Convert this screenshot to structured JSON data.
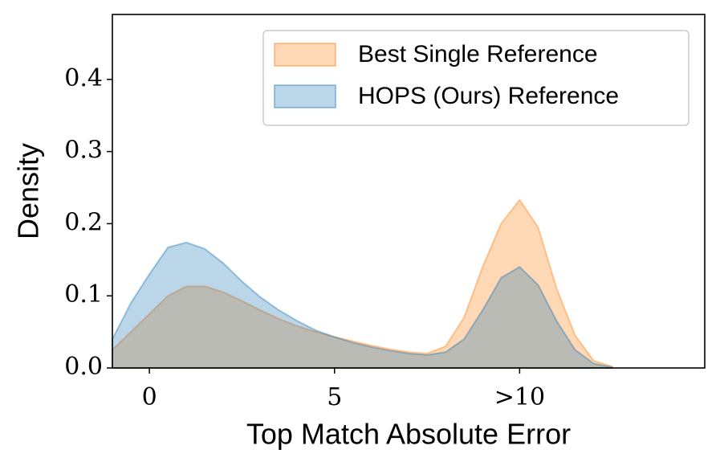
{
  "chart_data": {
    "type": "area",
    "xlabel": "Top Match Absolute Error",
    "ylabel": "Density",
    "x": [
      -1,
      -0.5,
      0,
      0.5,
      1,
      1.5,
      2,
      2.5,
      3,
      3.5,
      4,
      4.5,
      5,
      5.5,
      6,
      6.5,
      7,
      7.5,
      8,
      8.5,
      9,
      9.5,
      10,
      10.5,
      11,
      11.5,
      12,
      12.5
    ],
    "series": [
      {
        "name": "Best Single Reference",
        "color": "#ff7f0e",
        "values": [
          0.025,
          0.05,
          0.075,
          0.1,
          0.113,
          0.113,
          0.105,
          0.093,
          0.08,
          0.068,
          0.058,
          0.05,
          0.043,
          0.037,
          0.031,
          0.026,
          0.022,
          0.02,
          0.03,
          0.07,
          0.14,
          0.2,
          0.233,
          0.195,
          0.11,
          0.045,
          0.01,
          0.002
        ]
      },
      {
        "name": "HOPS (Ours) Reference",
        "color": "#1f77b4",
        "values": [
          0.04,
          0.09,
          0.13,
          0.167,
          0.174,
          0.165,
          0.145,
          0.12,
          0.098,
          0.08,
          0.065,
          0.052,
          0.043,
          0.035,
          0.029,
          0.024,
          0.02,
          0.018,
          0.022,
          0.04,
          0.08,
          0.125,
          0.14,
          0.115,
          0.065,
          0.025,
          0.006,
          0.001
        ]
      }
    ],
    "xlim": [
      -1,
      15
    ],
    "ylim": [
      0,
      0.49
    ],
    "xticks": [
      0,
      5,
      {
        "value": 10,
        "label": ">10"
      }
    ],
    "yticks": [
      {
        "value": 0,
        "label": "0.0"
      },
      0.1,
      0.2,
      0.3,
      0.4
    ],
    "legend": "upper right",
    "grid": false
  }
}
